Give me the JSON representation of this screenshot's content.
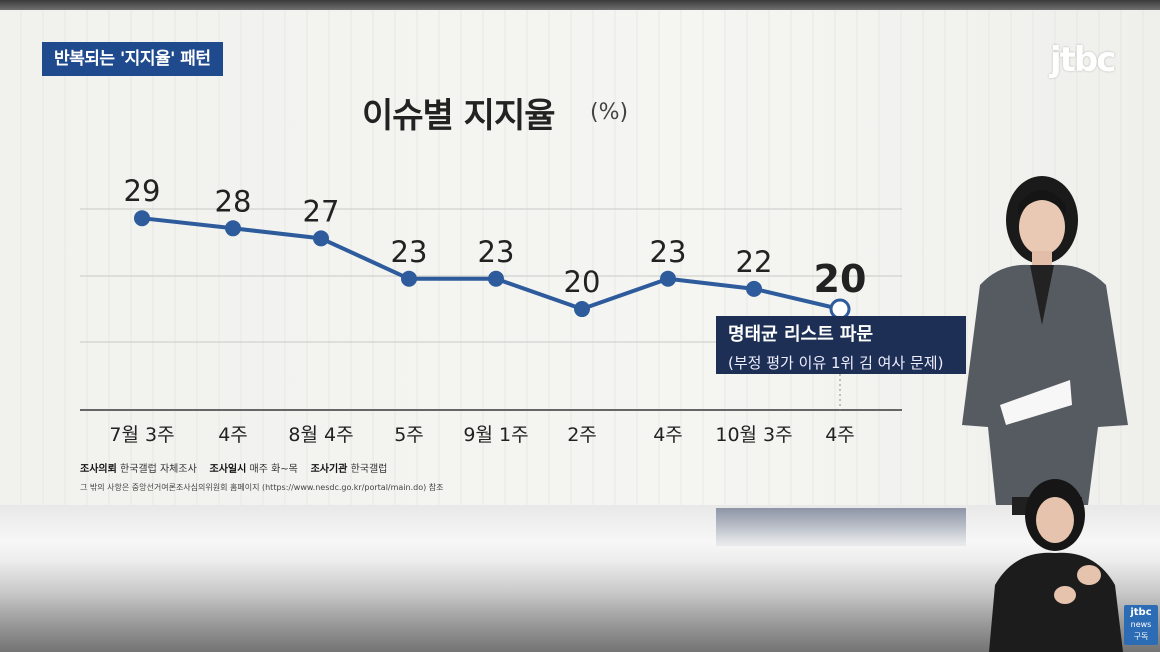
{
  "topic_tag": "반복되는 '지지율' 패턴",
  "logo": "jtbc",
  "chart_data": {
    "type": "line",
    "title": "이슈별 지지율",
    "unit": "(%)",
    "categories": [
      "7월 3주",
      "4주",
      "8월 4주",
      "5주",
      "9월 1주",
      "2주",
      "4주",
      "10월 3주",
      "4주"
    ],
    "values": [
      29,
      28,
      27,
      23,
      23,
      20,
      23,
      22,
      20
    ],
    "highlight_index": 8,
    "ylim": [
      10,
      30
    ],
    "grid": true,
    "line_color": "#2d5b9c",
    "label_color": "#222222"
  },
  "callout": {
    "title": "명태균 리스트 파문",
    "subtitle": "(부정 평가 이유 1위 김 여사 문제)"
  },
  "footer": {
    "client_label": "조사의뢰",
    "client_value": "한국갤럽 자체조사",
    "date_label": "조사일시",
    "date_value": "매주 화~목",
    "org_label": "조사기관",
    "org_value": "한국갤럽",
    "note": "그 밖의 사항은 중앙선거여론조사심의위원회 홈페이지 (https://www.nesdc.go.kr/portal/main.do) 참조"
  },
  "badge": {
    "line1": "jtbc",
    "line2": "news",
    "line3": "구독"
  }
}
